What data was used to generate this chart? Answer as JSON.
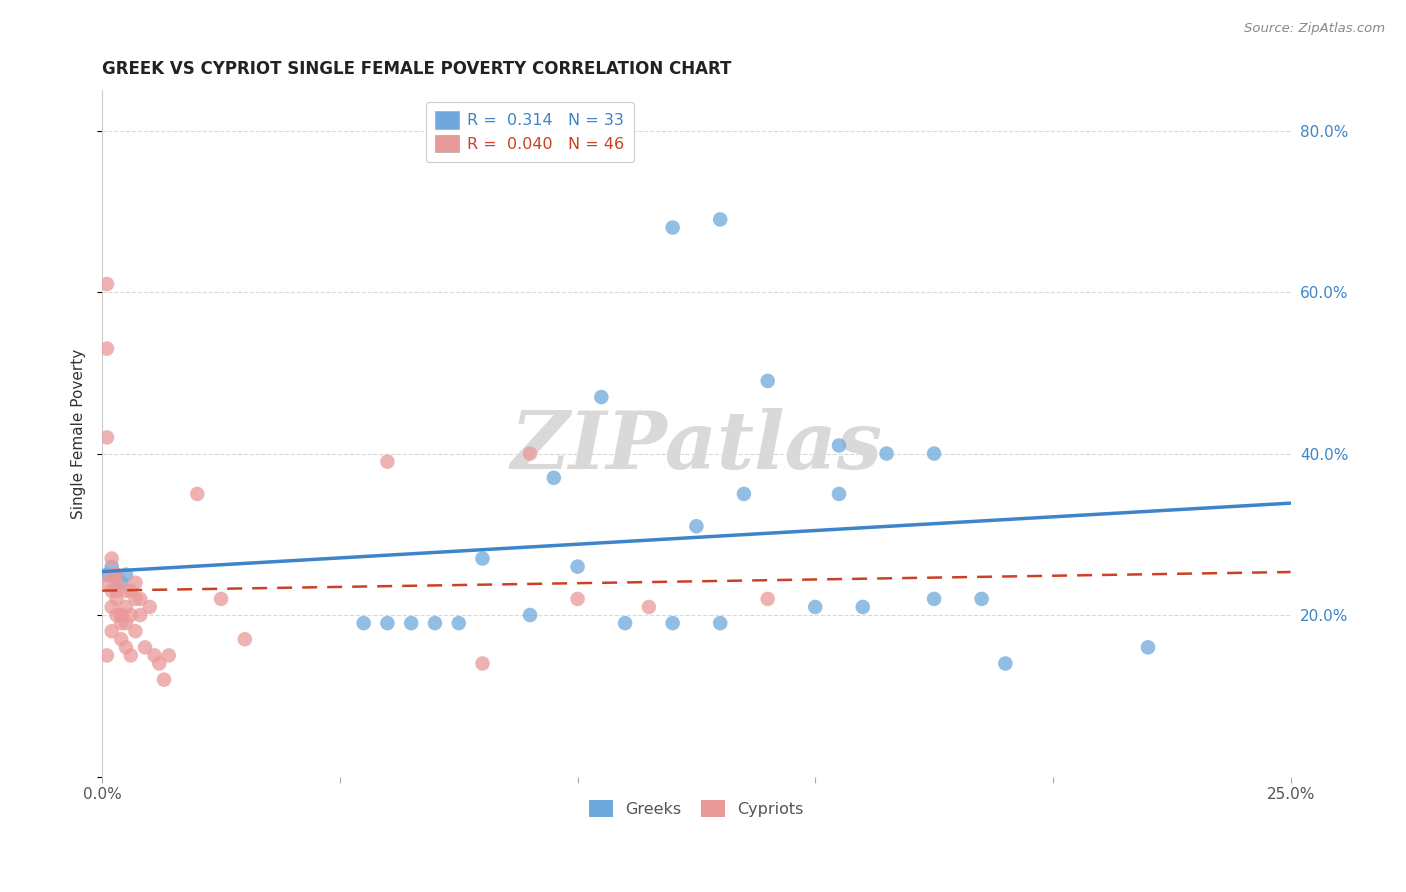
{
  "title": "GREEK VS CYPRIOT SINGLE FEMALE POVERTY CORRELATION CHART",
  "source": "Source: ZipAtlas.com",
  "ylabel": "Single Female Poverty",
  "xlim": [
    0.0,
    0.25
  ],
  "ylim": [
    0.0,
    0.85
  ],
  "xticks": [
    0.0,
    0.05,
    0.1,
    0.15,
    0.2,
    0.25
  ],
  "yticks": [
    0.0,
    0.2,
    0.4,
    0.6,
    0.8
  ],
  "ytick_right_labels": [
    "",
    "20.0%",
    "40.0%",
    "60.0%",
    "80.0%"
  ],
  "xtick_labels": [
    "0.0%",
    "",
    "",
    "",
    "",
    "25.0%"
  ],
  "greek_R": "0.314",
  "greek_N": "33",
  "cypriot_R": "0.040",
  "cypriot_N": "46",
  "greek_color": "#6fa8dc",
  "cypriot_color": "#ea9999",
  "greek_line_color": "#3d85c8",
  "cypriot_line_color": "#cc4125",
  "background_color": "#ffffff",
  "grid_color": "#d0d0d0",
  "watermark_color": "#d9d9d9",
  "greeks_x": [
    0.001,
    0.002,
    0.003,
    0.004,
    0.005,
    0.055,
    0.06,
    0.065,
    0.07,
    0.075,
    0.08,
    0.09,
    0.095,
    0.1,
    0.105,
    0.11,
    0.12,
    0.125,
    0.13,
    0.135,
    0.14,
    0.15,
    0.155,
    0.16,
    0.165,
    0.175,
    0.185,
    0.19,
    0.12,
    0.13,
    0.155,
    0.175,
    0.22
  ],
  "greeks_y": [
    0.25,
    0.26,
    0.25,
    0.24,
    0.25,
    0.19,
    0.19,
    0.19,
    0.19,
    0.19,
    0.27,
    0.2,
    0.37,
    0.26,
    0.47,
    0.19,
    0.19,
    0.31,
    0.19,
    0.35,
    0.49,
    0.21,
    0.35,
    0.21,
    0.4,
    0.4,
    0.22,
    0.14,
    0.68,
    0.69,
    0.41,
    0.22,
    0.16
  ],
  "cypriots_x": [
    0.001,
    0.001,
    0.001,
    0.001,
    0.001,
    0.002,
    0.002,
    0.002,
    0.002,
    0.002,
    0.003,
    0.003,
    0.003,
    0.003,
    0.003,
    0.004,
    0.004,
    0.004,
    0.004,
    0.005,
    0.005,
    0.005,
    0.005,
    0.006,
    0.006,
    0.006,
    0.007,
    0.007,
    0.007,
    0.008,
    0.008,
    0.009,
    0.01,
    0.011,
    0.012,
    0.013,
    0.014,
    0.02,
    0.025,
    0.03,
    0.06,
    0.08,
    0.09,
    0.1,
    0.115,
    0.14
  ],
  "cypriots_y": [
    0.61,
    0.53,
    0.42,
    0.24,
    0.15,
    0.27,
    0.25,
    0.23,
    0.21,
    0.18,
    0.25,
    0.24,
    0.23,
    0.22,
    0.2,
    0.2,
    0.2,
    0.19,
    0.17,
    0.23,
    0.21,
    0.19,
    0.16,
    0.23,
    0.2,
    0.15,
    0.24,
    0.22,
    0.18,
    0.22,
    0.2,
    0.16,
    0.21,
    0.15,
    0.14,
    0.12,
    0.15,
    0.35,
    0.22,
    0.17,
    0.39,
    0.14,
    0.4,
    0.22,
    0.21,
    0.22
  ]
}
